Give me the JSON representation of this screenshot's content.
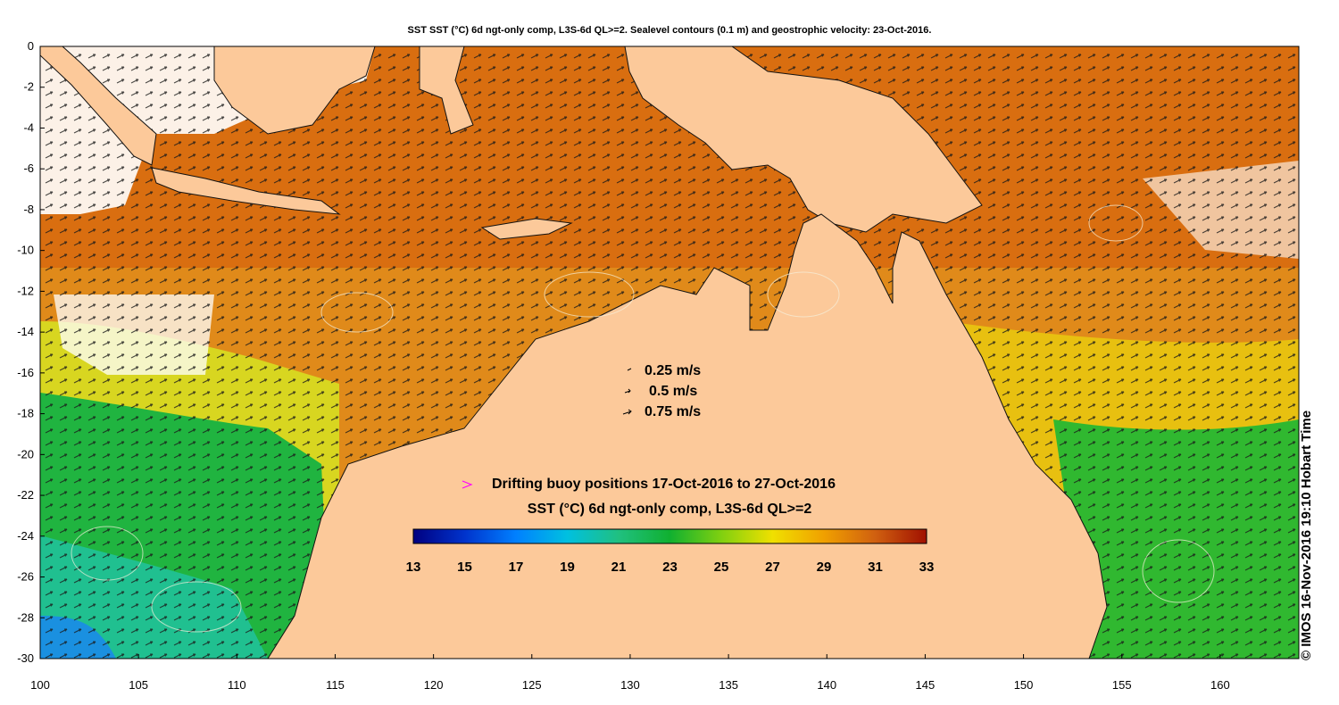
{
  "title": "SST SST (°C) 6d ngt-only comp, L3S-6d QL>=2. Sealevel contours (0.1 m) and geostrophic velocity: 23-Oct-2016.",
  "x_ticks": [
    "100",
    "105",
    "110",
    "115",
    "120",
    "125",
    "130",
    "135",
    "140",
    "145",
    "150",
    "155",
    "160"
  ],
  "y_ticks": [
    "0",
    "-2",
    "-4",
    "-6",
    "-8",
    "-10",
    "-12",
    "-14",
    "-16",
    "-18",
    "-20",
    "-22",
    "-24",
    "-26",
    "-28",
    "-30"
  ],
  "velocity_legend": [
    "0.25 m/s",
    "0.5 m/s",
    "0.75 m/s"
  ],
  "buoy_legend": "Drifting buoy positions 17-Oct-2016 to 27-Oct-2016",
  "colorbar": {
    "title": "SST (°C) 6d ngt-only comp, L3S-6d QL>=2",
    "ticks": [
      "13",
      "15",
      "17",
      "19",
      "21",
      "23",
      "25",
      "27",
      "29",
      "31",
      "33"
    ],
    "min": 13,
    "max": 33,
    "colors": [
      "#000080",
      "#0033cc",
      "#0080ff",
      "#00c0e0",
      "#20c080",
      "#10b030",
      "#80d010",
      "#f0e000",
      "#f0a000",
      "#d06010",
      "#a01000"
    ]
  },
  "credit": "© IMOS 16-Nov-2016 19:10 Hobart Time",
  "colors": {
    "land": "#fcc99a",
    "warm": "#d9740f",
    "buoy_marker": "#ff00ff"
  }
}
